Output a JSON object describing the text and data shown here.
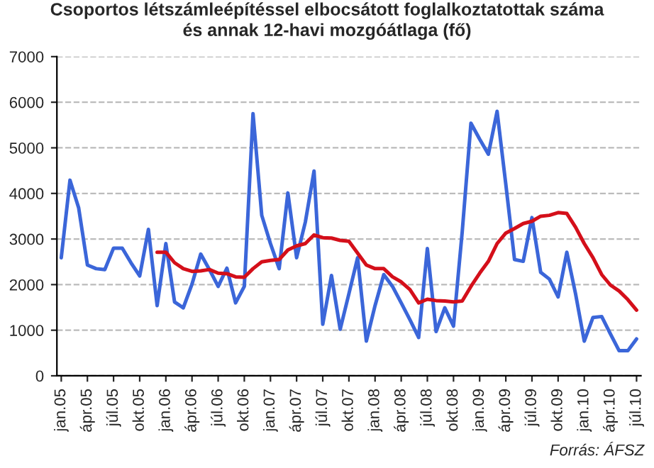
{
  "chart_data": {
    "type": "line",
    "title": "Csoportos létszámleépítéssel elbocsátott foglalkoztatottak száma\nés annak 12-havi mozgóátlaga (fő)",
    "categories": [
      "jan.05",
      null,
      null,
      "ápr.05",
      null,
      null,
      "júl.05",
      null,
      null,
      "okt.05",
      null,
      null,
      "jan.06",
      null,
      null,
      "ápr.06",
      null,
      null,
      "júl.06",
      null,
      null,
      "okt.06",
      null,
      null,
      "jan.07",
      null,
      null,
      "ápr.07",
      null,
      null,
      "júl.07",
      null,
      null,
      "okt.07",
      null,
      null,
      "jan.08",
      null,
      null,
      "ápr.08",
      null,
      null,
      "júl.08",
      null,
      null,
      "okt.08",
      null,
      null,
      "jan.09",
      null,
      null,
      "ápr.09",
      null,
      null,
      "júl.09",
      null,
      null,
      "okt.09",
      null,
      null,
      "jan.10",
      null,
      null,
      "ápr.10",
      null,
      null,
      "júl.10"
    ],
    "series": [
      {
        "color": "#3b66d9",
        "values": [
          2590,
          4290,
          3680,
          2430,
          2350,
          2330,
          2800,
          2800,
          2480,
          2190,
          3210,
          1540,
          2900,
          1620,
          1490,
          2010,
          2670,
          2330,
          1960,
          2360,
          1600,
          1960,
          5750,
          3520,
          2900,
          2350,
          4010,
          2590,
          3370,
          4490,
          1130,
          2200,
          1020,
          1800,
          2590,
          760,
          1540,
          2220,
          1960,
          1600,
          1230,
          840,
          2790,
          970,
          1490,
          1090,
          3160,
          5540,
          5190,
          4860,
          5800,
          4200,
          2550,
          2510,
          3470,
          2270,
          2120,
          1730,
          2710,
          1800,
          760,
          1280,
          1300,
          920,
          550,
          550,
          810
        ]
      },
      {
        "color": "#d40f1a",
        "values": [
          null,
          null,
          null,
          null,
          null,
          null,
          null,
          null,
          null,
          null,
          null,
          2710,
          2710,
          2480,
          2350,
          2290,
          2300,
          2330,
          2250,
          2240,
          2170,
          2160,
          2350,
          2500,
          2530,
          2550,
          2760,
          2850,
          2900,
          3090,
          3030,
          3020,
          2970,
          2950,
          2690,
          2430,
          2350,
          2350,
          2170,
          2060,
          1890,
          1600,
          1680,
          1650,
          1640,
          1620,
          1640,
          1960,
          2250,
          2510,
          2900,
          3130,
          3230,
          3340,
          3390,
          3500,
          3520,
          3580,
          3560,
          3260,
          2900,
          2590,
          2220,
          1990,
          1860,
          1670,
          1440
        ]
      }
    ],
    "ylim": [
      0,
      7000
    ],
    "yticks": [
      0,
      1000,
      2000,
      3000,
      4000,
      5000,
      6000,
      7000
    ],
    "grid": "y",
    "line_style": "solid",
    "marker": "none",
    "annotations": [
      "Forrás: ÁFSZ"
    ]
  }
}
